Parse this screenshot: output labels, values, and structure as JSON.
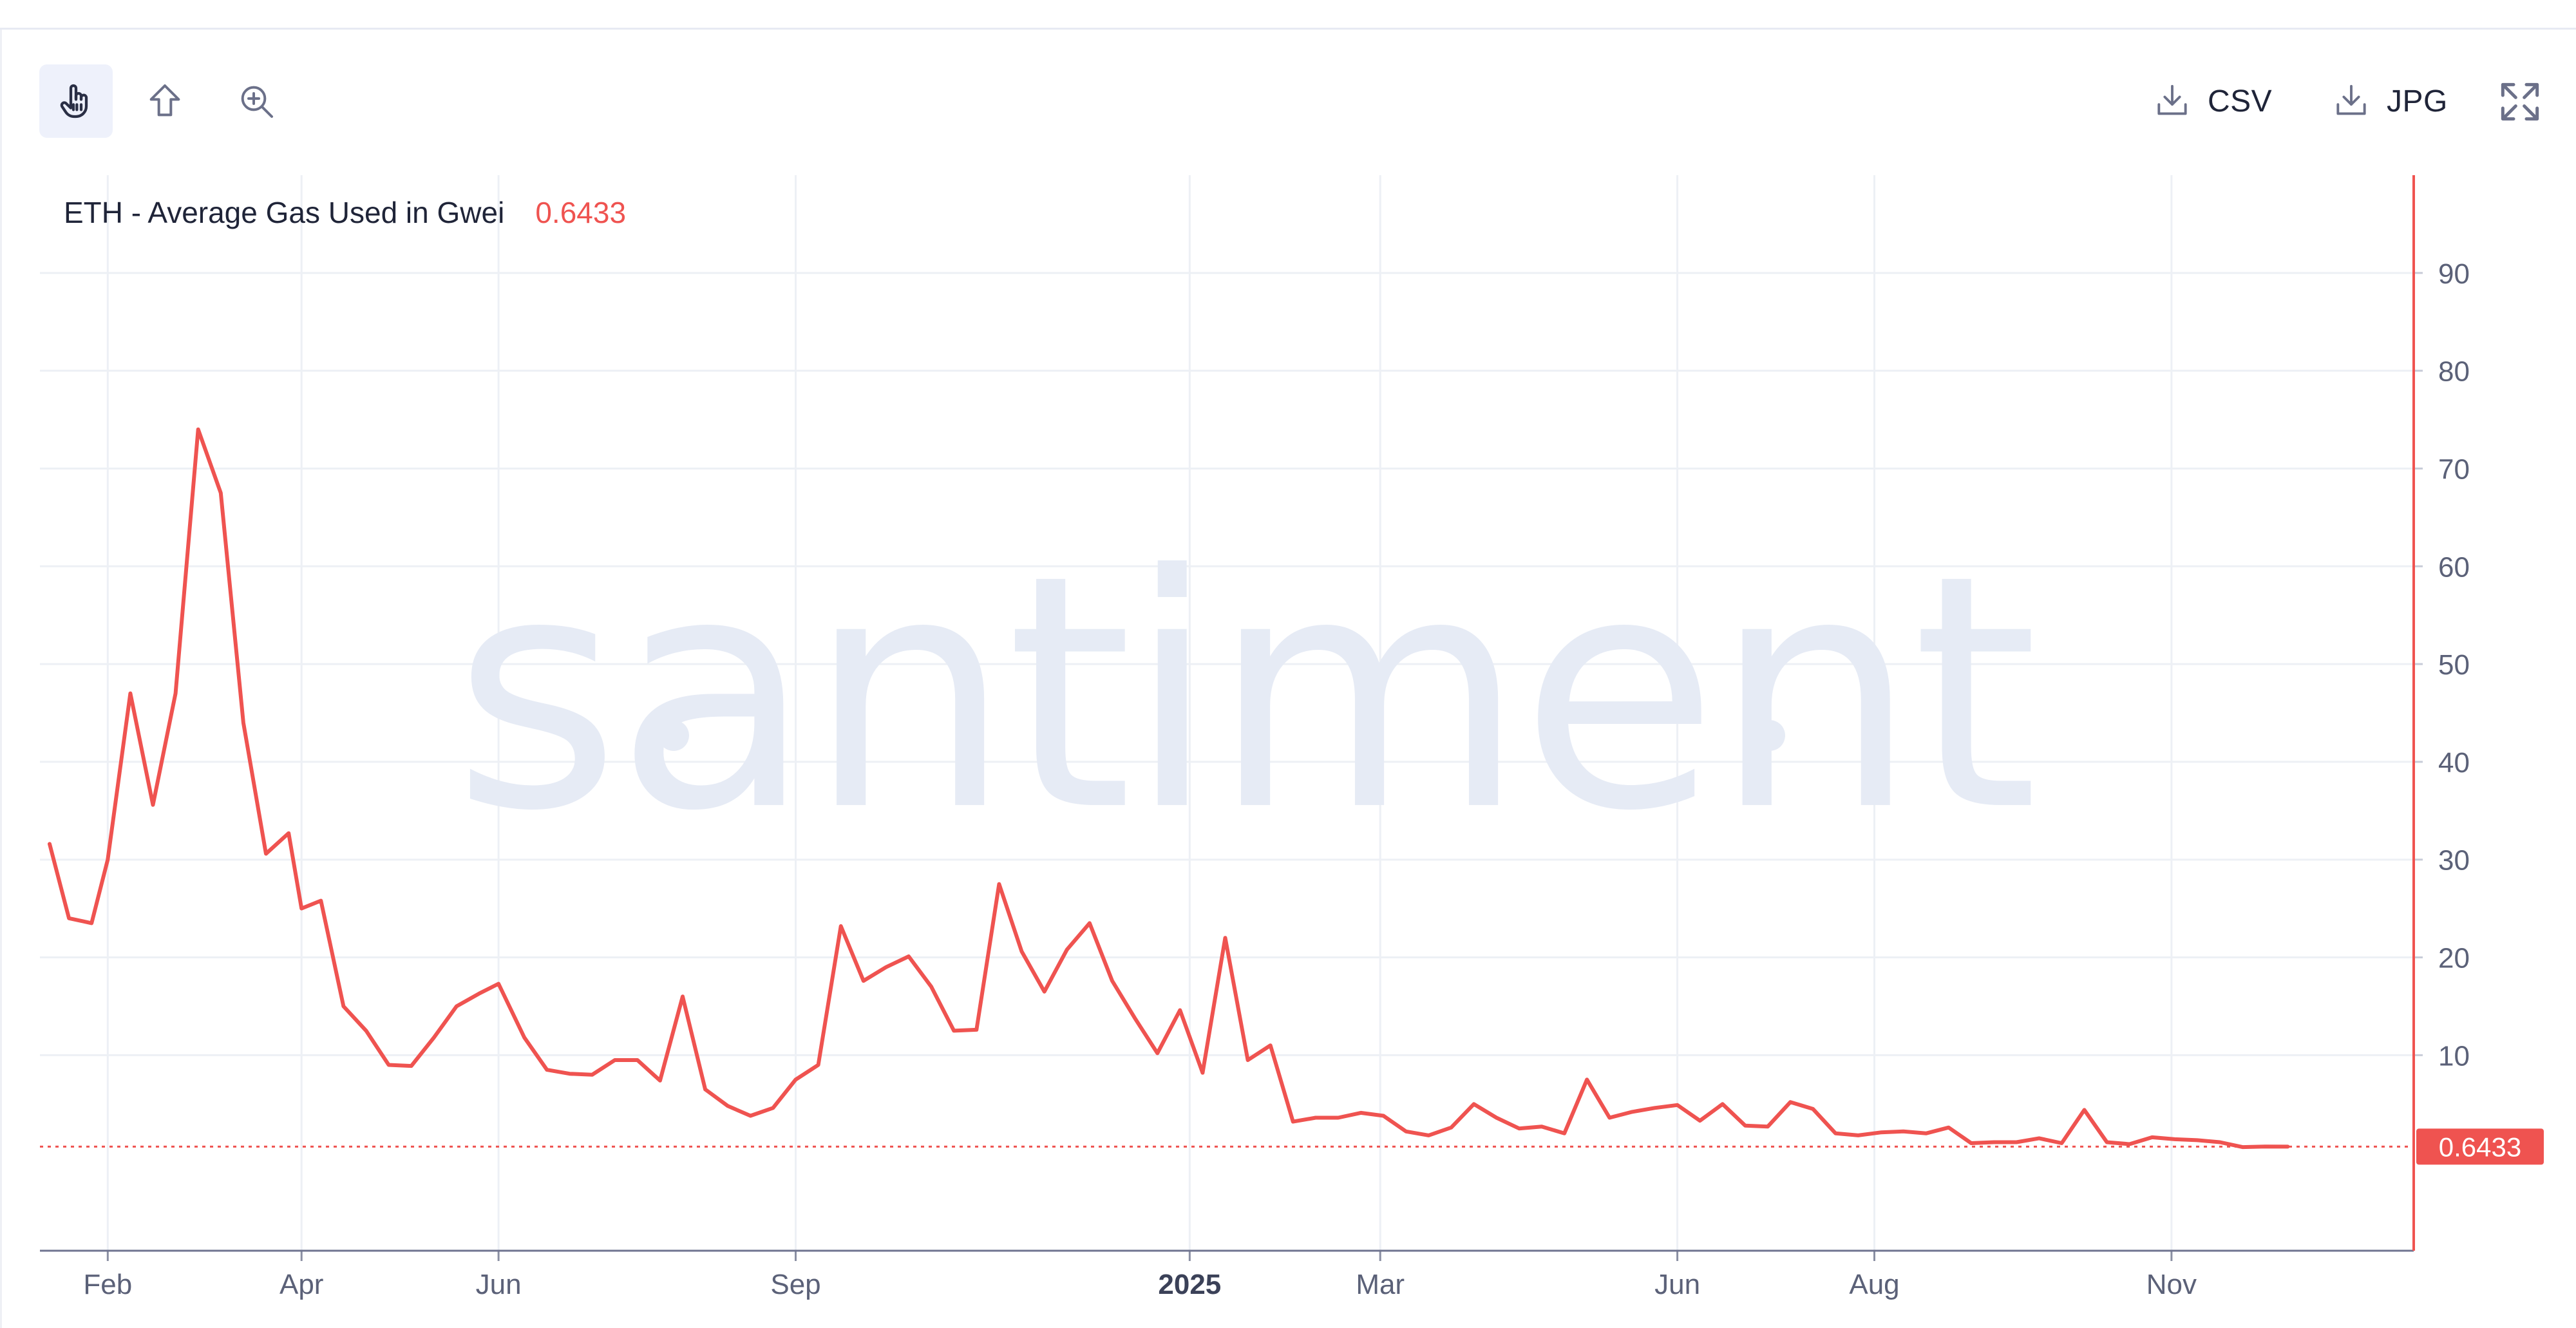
{
  "toolbar": {
    "tools": [
      {
        "icon": "pointer-hand-icon",
        "active": true
      },
      {
        "icon": "share-upload-icon",
        "active": false
      },
      {
        "icon": "zoom-in-icon",
        "active": false
      }
    ],
    "csv_label": "CSV",
    "jpg_label": "JPG",
    "download_icon": "download-icon",
    "fullscreen_icon": "expand-icon"
  },
  "watermark": "santiment",
  "legend": {
    "name": "ETH - Average Gas Used in Gwei",
    "value": "0.6433"
  },
  "colors": {
    "series": "#ef5350",
    "grid": "#edf0f5",
    "axis": "#8a8fa3",
    "watermark": "#e6ebf5",
    "active_tool_bg": "#eef1fb"
  },
  "chart_data": {
    "type": "line",
    "title": "ETH - Average Gas Used in Gwei",
    "xlabel": "",
    "ylabel": "",
    "y_axis_position": "right",
    "ylim": [
      -10,
      100
    ],
    "y_ticks": [
      10,
      20,
      30,
      40,
      50,
      60,
      70,
      80,
      90
    ],
    "x_range": [
      "2024-01-11",
      "2026-01-15"
    ],
    "x_ticks": [
      {
        "label": "Feb",
        "date": "2024-02-01",
        "bold": false
      },
      {
        "label": "Apr",
        "date": "2024-04-01",
        "bold": false
      },
      {
        "label": "Jun",
        "date": "2024-06-01",
        "bold": false
      },
      {
        "label": "Sep",
        "date": "2024-09-01",
        "bold": false
      },
      {
        "label": "2025",
        "date": "2025-01-01",
        "bold": true
      },
      {
        "label": "Mar",
        "date": "2025-03-01",
        "bold": false
      },
      {
        "label": "Jun",
        "date": "2025-06-01",
        "bold": false
      },
      {
        "label": "Aug",
        "date": "2025-08-01",
        "bold": false
      },
      {
        "label": "Nov",
        "date": "2025-11-01",
        "bold": false
      }
    ],
    "grid": true,
    "last_value": 0.6433,
    "last_value_label": "0.6433",
    "series": [
      {
        "name": "ETH - Average Gas Used in Gwei",
        "x": [
          "2024-01-14",
          "2024-01-20",
          "2024-01-27",
          "2024-02-01",
          "2024-02-08",
          "2024-02-15",
          "2024-02-22",
          "2024-02-29",
          "2024-03-07",
          "2024-03-14",
          "2024-03-21",
          "2024-03-28",
          "2024-04-01",
          "2024-04-07",
          "2024-04-14",
          "2024-04-21",
          "2024-04-28",
          "2024-05-05",
          "2024-05-12",
          "2024-05-19",
          "2024-05-26",
          "2024-06-01",
          "2024-06-09",
          "2024-06-16",
          "2024-06-23",
          "2024-06-30",
          "2024-07-07",
          "2024-07-14",
          "2024-07-21",
          "2024-07-28",
          "2024-08-04",
          "2024-08-11",
          "2024-08-18",
          "2024-08-25",
          "2024-09-01",
          "2024-09-08",
          "2024-09-15",
          "2024-09-22",
          "2024-09-29",
          "2024-10-06",
          "2024-10-13",
          "2024-10-20",
          "2024-10-27",
          "2024-11-03",
          "2024-11-10",
          "2024-11-17",
          "2024-11-24",
          "2024-12-01",
          "2024-12-08",
          "2024-12-15",
          "2024-12-22",
          "2024-12-29",
          "2025-01-05",
          "2025-01-12",
          "2025-01-19",
          "2025-01-26",
          "2025-02-02",
          "2025-02-09",
          "2025-02-16",
          "2025-02-23",
          "2025-03-02",
          "2025-03-09",
          "2025-03-16",
          "2025-03-23",
          "2025-03-30",
          "2025-04-06",
          "2025-04-13",
          "2025-04-20",
          "2025-04-27",
          "2025-05-04",
          "2025-05-11",
          "2025-05-18",
          "2025-05-25",
          "2025-06-01",
          "2025-06-08",
          "2025-06-15",
          "2025-06-22",
          "2025-06-29",
          "2025-07-06",
          "2025-07-13",
          "2025-07-20",
          "2025-07-27",
          "2025-08-03",
          "2025-08-10",
          "2025-08-17",
          "2025-08-24",
          "2025-08-31",
          "2025-09-07",
          "2025-09-14",
          "2025-09-21",
          "2025-09-28",
          "2025-10-05",
          "2025-10-12",
          "2025-10-19",
          "2025-10-26",
          "2025-11-02",
          "2025-11-09",
          "2025-11-16",
          "2025-11-23",
          "2025-11-30",
          "2025-12-07"
        ],
        "values": [
          31.6,
          24.0,
          23.5,
          30.0,
          47.0,
          35.6,
          47.0,
          74.0,
          67.5,
          44.0,
          30.6,
          32.7,
          25.0,
          25.8,
          15.0,
          12.5,
          9.0,
          8.9,
          11.8,
          15.0,
          16.3,
          17.3,
          11.8,
          8.5,
          8.1,
          8.0,
          9.5,
          9.5,
          7.4,
          16.0,
          6.5,
          4.8,
          3.8,
          4.6,
          7.5,
          9.0,
          23.2,
          17.6,
          19.0,
          20.1,
          17.0,
          12.5,
          12.6,
          27.5,
          20.6,
          16.5,
          20.8,
          23.5,
          17.6,
          13.8,
          10.2,
          14.6,
          8.2,
          22.0,
          9.5,
          11.0,
          3.2,
          3.6,
          3.6,
          4.1,
          3.8,
          2.2,
          1.8,
          2.6,
          5.0,
          3.6,
          2.5,
          2.7,
          2.0,
          7.5,
          3.6,
          4.2,
          4.6,
          4.9,
          3.3,
          5.0,
          2.8,
          2.7,
          5.2,
          4.5,
          2.0,
          1.8,
          2.1,
          2.2,
          2.0,
          2.6,
          1.0,
          1.1,
          1.1,
          1.5,
          1.0,
          4.4,
          1.1,
          0.9,
          1.6,
          1.4,
          1.3,
          1.1,
          0.6,
          0.65,
          0.6433
        ]
      }
    ]
  }
}
